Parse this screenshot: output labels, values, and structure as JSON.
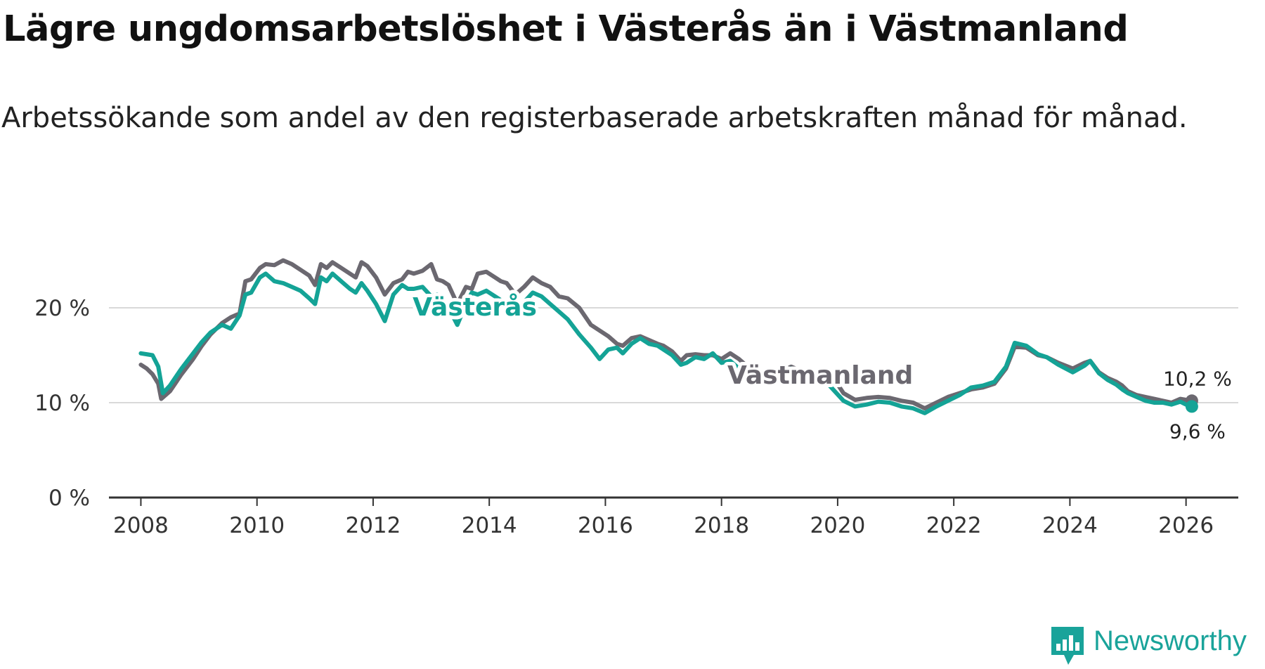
{
  "title": "Lägre ungdomsarbetslöshet i Västerås än i Västmanland",
  "subtitle": "Arbetssökande som andel av den registerbaserade arbetskraften månad för månad.",
  "brand": {
    "name": "Newsworthy",
    "color": "#19a39a"
  },
  "colors": {
    "vasteras": "#14a396",
    "vastmanland": "#6b6870",
    "grid": "#d9d9d9",
    "axis": "#333333"
  },
  "chart_data": {
    "type": "line",
    "title": "Lägre ungdomsarbetslöshet i Västerås än i Västmanland",
    "xlabel": "",
    "ylabel": "",
    "xlim": [
      2007.45,
      2026.9
    ],
    "ylim": [
      0,
      28
    ],
    "x_ticks": [
      2008,
      2010,
      2012,
      2014,
      2016,
      2018,
      2020,
      2022,
      2024,
      2026
    ],
    "y_ticks": [
      {
        "value": 0,
        "label": "0 %"
      },
      {
        "value": 10,
        "label": "10 %"
      },
      {
        "value": 20,
        "label": "20 %"
      }
    ],
    "grid": true,
    "series": [
      {
        "name": "Västmanland",
        "label": "Västmanland",
        "color": "#6b6870",
        "end_label": "10,2 %",
        "points": [
          [
            2008.0,
            14.0
          ],
          [
            2008.1,
            13.6
          ],
          [
            2008.2,
            13.0
          ],
          [
            2008.3,
            12.0
          ],
          [
            2008.35,
            10.4
          ],
          [
            2008.5,
            11.2
          ],
          [
            2008.7,
            13.0
          ],
          [
            2008.9,
            14.6
          ],
          [
            2009.05,
            16.0
          ],
          [
            2009.2,
            17.2
          ],
          [
            2009.4,
            18.4
          ],
          [
            2009.55,
            19.0
          ],
          [
            2009.7,
            19.4
          ],
          [
            2009.8,
            22.8
          ],
          [
            2009.9,
            23.0
          ],
          [
            2010.05,
            24.2
          ],
          [
            2010.15,
            24.6
          ],
          [
            2010.3,
            24.5
          ],
          [
            2010.45,
            25.0
          ],
          [
            2010.6,
            24.6
          ],
          [
            2010.75,
            24.0
          ],
          [
            2010.9,
            23.4
          ],
          [
            2011.0,
            22.4
          ],
          [
            2011.1,
            24.6
          ],
          [
            2011.2,
            24.2
          ],
          [
            2011.3,
            24.8
          ],
          [
            2011.45,
            24.2
          ],
          [
            2011.6,
            23.6
          ],
          [
            2011.7,
            23.2
          ],
          [
            2011.8,
            24.8
          ],
          [
            2011.9,
            24.4
          ],
          [
            2012.05,
            23.2
          ],
          [
            2012.2,
            21.4
          ],
          [
            2012.35,
            22.6
          ],
          [
            2012.5,
            23.0
          ],
          [
            2012.6,
            23.8
          ],
          [
            2012.7,
            23.6
          ],
          [
            2012.85,
            23.9
          ],
          [
            2013.0,
            24.6
          ],
          [
            2013.1,
            23.0
          ],
          [
            2013.2,
            22.8
          ],
          [
            2013.3,
            22.4
          ],
          [
            2013.45,
            20.4
          ],
          [
            2013.6,
            22.2
          ],
          [
            2013.7,
            22.0
          ],
          [
            2013.8,
            23.6
          ],
          [
            2013.95,
            23.8
          ],
          [
            2014.1,
            23.2
          ],
          [
            2014.2,
            22.8
          ],
          [
            2014.3,
            22.6
          ],
          [
            2014.45,
            21.4
          ],
          [
            2014.6,
            22.2
          ],
          [
            2014.75,
            23.2
          ],
          [
            2014.9,
            22.6
          ],
          [
            2015.05,
            22.2
          ],
          [
            2015.2,
            21.2
          ],
          [
            2015.35,
            21.0
          ],
          [
            2015.55,
            20.0
          ],
          [
            2015.75,
            18.2
          ],
          [
            2015.9,
            17.6
          ],
          [
            2016.05,
            17.0
          ],
          [
            2016.2,
            16.2
          ],
          [
            2016.3,
            16.0
          ],
          [
            2016.45,
            16.8
          ],
          [
            2016.6,
            17.0
          ],
          [
            2016.75,
            16.6
          ],
          [
            2016.9,
            16.2
          ],
          [
            2017.0,
            16.0
          ],
          [
            2017.15,
            15.4
          ],
          [
            2017.3,
            14.4
          ],
          [
            2017.4,
            15.0
          ],
          [
            2017.55,
            15.1
          ],
          [
            2017.7,
            15.0
          ],
          [
            2017.85,
            15.0
          ],
          [
            2018.0,
            14.6
          ],
          [
            2018.15,
            15.2
          ],
          [
            2018.3,
            14.6
          ],
          [
            2018.45,
            13.8
          ],
          [
            2018.6,
            12.8
          ],
          [
            2018.75,
            12.6
          ],
          [
            2018.9,
            13.0
          ],
          [
            2019.05,
            13.4
          ],
          [
            2019.2,
            13.8
          ],
          [
            2019.35,
            13.4
          ],
          [
            2019.5,
            13.0
          ],
          [
            2019.65,
            12.8
          ],
          [
            2019.8,
            12.8
          ],
          [
            2019.95,
            12.4
          ],
          [
            2020.1,
            11.0
          ],
          [
            2020.3,
            10.3
          ],
          [
            2020.5,
            10.5
          ],
          [
            2020.7,
            10.6
          ],
          [
            2020.9,
            10.5
          ],
          [
            2021.1,
            10.2
          ],
          [
            2021.3,
            10.0
          ],
          [
            2021.5,
            9.4
          ],
          [
            2021.7,
            10.0
          ],
          [
            2021.9,
            10.6
          ],
          [
            2022.1,
            11.0
          ],
          [
            2022.3,
            11.4
          ],
          [
            2022.5,
            11.6
          ],
          [
            2022.7,
            12.0
          ],
          [
            2022.9,
            13.6
          ],
          [
            2023.05,
            15.9
          ],
          [
            2023.25,
            15.8
          ],
          [
            2023.45,
            15.0
          ],
          [
            2023.6,
            14.8
          ],
          [
            2023.8,
            14.2
          ],
          [
            2024.05,
            13.6
          ],
          [
            2024.25,
            14.2
          ],
          [
            2024.35,
            14.4
          ],
          [
            2024.5,
            13.2
          ],
          [
            2024.65,
            12.6
          ],
          [
            2024.8,
            12.2
          ],
          [
            2024.9,
            11.8
          ],
          [
            2025.0,
            11.2
          ],
          [
            2025.15,
            10.8
          ],
          [
            2025.3,
            10.6
          ],
          [
            2025.45,
            10.4
          ],
          [
            2025.6,
            10.2
          ],
          [
            2025.75,
            10.0
          ],
          [
            2025.9,
            10.4
          ],
          [
            2026.0,
            10.3
          ],
          [
            2026.1,
            10.2
          ]
        ]
      },
      {
        "name": "Västerås",
        "label": "Västerås",
        "color": "#14a396",
        "end_label": "9,6 %",
        "points": [
          [
            2008.0,
            15.2
          ],
          [
            2008.1,
            15.1
          ],
          [
            2008.2,
            15.0
          ],
          [
            2008.3,
            13.8
          ],
          [
            2008.38,
            11.0
          ],
          [
            2008.5,
            11.8
          ],
          [
            2008.7,
            13.6
          ],
          [
            2008.9,
            15.2
          ],
          [
            2009.05,
            16.4
          ],
          [
            2009.2,
            17.4
          ],
          [
            2009.4,
            18.2
          ],
          [
            2009.55,
            17.8
          ],
          [
            2009.7,
            19.2
          ],
          [
            2009.8,
            21.4
          ],
          [
            2009.9,
            21.6
          ],
          [
            2010.05,
            23.2
          ],
          [
            2010.15,
            23.6
          ],
          [
            2010.3,
            22.8
          ],
          [
            2010.45,
            22.6
          ],
          [
            2010.6,
            22.2
          ],
          [
            2010.75,
            21.8
          ],
          [
            2010.9,
            21.0
          ],
          [
            2011.0,
            20.4
          ],
          [
            2011.1,
            23.2
          ],
          [
            2011.2,
            22.8
          ],
          [
            2011.3,
            23.6
          ],
          [
            2011.45,
            22.8
          ],
          [
            2011.6,
            22.0
          ],
          [
            2011.7,
            21.6
          ],
          [
            2011.8,
            22.6
          ],
          [
            2011.9,
            21.8
          ],
          [
            2012.05,
            20.4
          ],
          [
            2012.2,
            18.6
          ],
          [
            2012.35,
            21.4
          ],
          [
            2012.5,
            22.4
          ],
          [
            2012.6,
            22.0
          ],
          [
            2012.7,
            22.0
          ],
          [
            2012.85,
            22.2
          ],
          [
            2013.0,
            21.2
          ],
          [
            2013.1,
            21.4
          ],
          [
            2013.2,
            20.6
          ],
          [
            2013.3,
            20.0
          ],
          [
            2013.45,
            18.2
          ],
          [
            2013.6,
            20.4
          ],
          [
            2013.7,
            21.6
          ],
          [
            2013.8,
            21.4
          ],
          [
            2013.95,
            21.8
          ],
          [
            2014.1,
            21.2
          ],
          [
            2014.2,
            20.8
          ],
          [
            2014.3,
            20.4
          ],
          [
            2014.45,
            19.4
          ],
          [
            2014.6,
            20.6
          ],
          [
            2014.75,
            21.6
          ],
          [
            2014.9,
            21.2
          ],
          [
            2015.05,
            20.4
          ],
          [
            2015.2,
            19.6
          ],
          [
            2015.35,
            18.8
          ],
          [
            2015.55,
            17.2
          ],
          [
            2015.75,
            15.8
          ],
          [
            2015.9,
            14.6
          ],
          [
            2016.05,
            15.6
          ],
          [
            2016.2,
            15.8
          ],
          [
            2016.3,
            15.2
          ],
          [
            2016.45,
            16.2
          ],
          [
            2016.6,
            16.8
          ],
          [
            2016.75,
            16.2
          ],
          [
            2016.9,
            16.0
          ],
          [
            2017.0,
            15.6
          ],
          [
            2017.15,
            15.0
          ],
          [
            2017.3,
            14.0
          ],
          [
            2017.4,
            14.2
          ],
          [
            2017.55,
            14.8
          ],
          [
            2017.7,
            14.6
          ],
          [
            2017.85,
            15.2
          ],
          [
            2018.0,
            14.2
          ],
          [
            2018.15,
            14.4
          ],
          [
            2018.3,
            13.6
          ],
          [
            2018.45,
            12.8
          ],
          [
            2018.6,
            12.4
          ],
          [
            2018.75,
            12.4
          ],
          [
            2018.9,
            13.0
          ],
          [
            2019.05,
            13.4
          ],
          [
            2019.2,
            13.6
          ],
          [
            2019.35,
            13.2
          ],
          [
            2019.5,
            12.6
          ],
          [
            2019.65,
            12.4
          ],
          [
            2019.8,
            12.2
          ],
          [
            2019.95,
            11.2
          ],
          [
            2020.1,
            10.2
          ],
          [
            2020.3,
            9.6
          ],
          [
            2020.5,
            9.8
          ],
          [
            2020.7,
            10.1
          ],
          [
            2020.9,
            10.0
          ],
          [
            2021.1,
            9.6
          ],
          [
            2021.3,
            9.4
          ],
          [
            2021.5,
            8.9
          ],
          [
            2021.7,
            9.6
          ],
          [
            2021.9,
            10.2
          ],
          [
            2022.1,
            10.8
          ],
          [
            2022.3,
            11.6
          ],
          [
            2022.5,
            11.8
          ],
          [
            2022.7,
            12.2
          ],
          [
            2022.9,
            13.8
          ],
          [
            2023.05,
            16.3
          ],
          [
            2023.25,
            16.0
          ],
          [
            2023.45,
            15.1
          ],
          [
            2023.6,
            14.8
          ],
          [
            2023.8,
            14.0
          ],
          [
            2024.05,
            13.2
          ],
          [
            2024.25,
            13.9
          ],
          [
            2024.35,
            14.4
          ],
          [
            2024.5,
            13.1
          ],
          [
            2024.65,
            12.4
          ],
          [
            2024.8,
            11.9
          ],
          [
            2024.9,
            11.4
          ],
          [
            2025.0,
            11.0
          ],
          [
            2025.15,
            10.6
          ],
          [
            2025.3,
            10.2
          ],
          [
            2025.45,
            10.0
          ],
          [
            2025.6,
            10.0
          ],
          [
            2025.75,
            9.8
          ],
          [
            2025.9,
            10.1
          ],
          [
            2026.0,
            9.8
          ],
          [
            2026.1,
            9.6
          ]
        ]
      }
    ],
    "annotations": [
      {
        "series": "Västerås",
        "text": "Västerås",
        "x": 2013.75,
        "y": 19.2
      },
      {
        "series": "Västmanland",
        "text": "Västmanland",
        "x": 2019.7,
        "y": 12.0
      }
    ]
  }
}
